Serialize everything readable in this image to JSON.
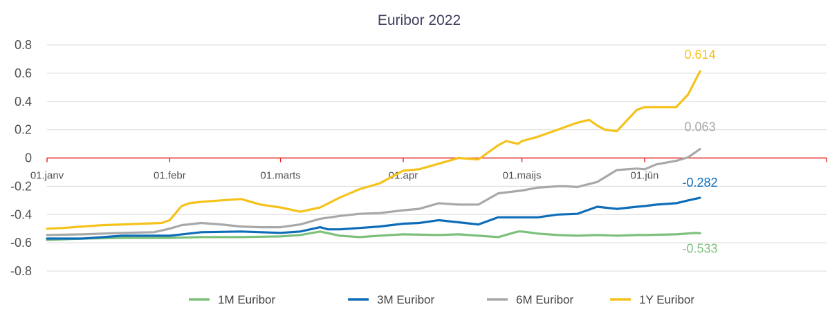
{
  "chart_data": {
    "type": "line",
    "title": "Euribor 2022",
    "ylim": [
      -0.8,
      0.8
    ],
    "yticks": [
      "0.8",
      "0.6",
      "0.4",
      "0.2",
      "0",
      "-0.2",
      "-0.4",
      "-0.6",
      "-0.8"
    ],
    "ytick_values": [
      0.8,
      0.6,
      0.4,
      0.2,
      0,
      -0.2,
      -0.4,
      -0.6,
      -0.8
    ],
    "xlim": [
      1,
      177
    ],
    "xticks": [
      {
        "label": "01.janv",
        "day": 1
      },
      {
        "label": "01.febr",
        "day": 32
      },
      {
        "label": "01.marts",
        "day": 60
      },
      {
        "label": "01.apr",
        "day": 91
      },
      {
        "label": "01.maijs",
        "day": 121
      },
      {
        "label": "01.jūn",
        "day": 152
      }
    ],
    "zero_line_color": "#e02020",
    "grid": true,
    "legend_position": "bottom",
    "series": [
      {
        "name": "1M Euribor",
        "color": "#7cc07c",
        "end_label": "-0.533",
        "x": [
          1,
          10,
          20,
          32,
          40,
          50,
          60,
          65,
          70,
          75,
          80,
          85,
          91,
          100,
          105,
          110,
          115,
          120,
          121,
          125,
          130,
          135,
          140,
          145,
          150,
          152,
          160,
          165,
          166
        ],
        "y": [
          -0.58,
          -0.57,
          -0.565,
          -0.565,
          -0.56,
          -0.56,
          -0.555,
          -0.545,
          -0.52,
          -0.55,
          -0.56,
          -0.55,
          -0.54,
          -0.545,
          -0.54,
          -0.55,
          -0.56,
          -0.52,
          -0.52,
          -0.535,
          -0.545,
          -0.55,
          -0.545,
          -0.55,
          -0.545,
          -0.545,
          -0.54,
          -0.53,
          -0.533
        ]
      },
      {
        "name": "3M Euribor",
        "color": "#0f6db8",
        "end_label": "-0.282",
        "x": [
          1,
          10,
          20,
          32,
          40,
          50,
          55,
          60,
          65,
          70,
          72,
          75,
          80,
          85,
          91,
          95,
          100,
          105,
          110,
          115,
          121,
          125,
          130,
          135,
          140,
          145,
          150,
          152,
          155,
          160,
          163,
          166
        ],
        "y": [
          -0.57,
          -0.57,
          -0.55,
          -0.55,
          -0.525,
          -0.52,
          -0.525,
          -0.53,
          -0.52,
          -0.49,
          -0.505,
          -0.505,
          -0.495,
          -0.485,
          -0.465,
          -0.46,
          -0.44,
          -0.455,
          -0.47,
          -0.42,
          -0.42,
          -0.42,
          -0.4,
          -0.395,
          -0.345,
          -0.36,
          -0.345,
          -0.34,
          -0.33,
          -0.32,
          -0.3,
          -0.282
        ]
      },
      {
        "name": "6M Euribor",
        "color": "#a8a8a8",
        "end_label": "0.063",
        "x": [
          1,
          10,
          20,
          28,
          32,
          35,
          40,
          45,
          50,
          55,
          60,
          65,
          70,
          75,
          80,
          85,
          91,
          95,
          100,
          105,
          110,
          115,
          121,
          125,
          130,
          132,
          135,
          140,
          145,
          150,
          152,
          155,
          160,
          163,
          166
        ],
        "y": [
          -0.545,
          -0.54,
          -0.53,
          -0.525,
          -0.5,
          -0.475,
          -0.46,
          -0.47,
          -0.485,
          -0.49,
          -0.49,
          -0.47,
          -0.43,
          -0.41,
          -0.395,
          -0.39,
          -0.37,
          -0.36,
          -0.32,
          -0.33,
          -0.33,
          -0.25,
          -0.23,
          -0.21,
          -0.2,
          -0.2,
          -0.205,
          -0.17,
          -0.085,
          -0.075,
          -0.08,
          -0.045,
          -0.02,
          0.005,
          0.063
        ]
      },
      {
        "name": "1Y Euribor",
        "color": "#f5c21b",
        "end_label": "0.614",
        "x": [
          1,
          5,
          10,
          15,
          20,
          25,
          30,
          32,
          35,
          37,
          40,
          45,
          50,
          55,
          60,
          65,
          70,
          75,
          80,
          85,
          91,
          95,
          100,
          105,
          110,
          115,
          117,
          120,
          121,
          125,
          130,
          135,
          138,
          140,
          142,
          145,
          150,
          152,
          155,
          160,
          163,
          166
        ],
        "y": [
          -0.5,
          -0.495,
          -0.485,
          -0.475,
          -0.47,
          -0.465,
          -0.46,
          -0.44,
          -0.34,
          -0.32,
          -0.31,
          -0.3,
          -0.29,
          -0.33,
          -0.35,
          -0.38,
          -0.35,
          -0.28,
          -0.22,
          -0.18,
          -0.09,
          -0.08,
          -0.04,
          0,
          -0.01,
          0.09,
          0.12,
          0.1,
          0.12,
          0.15,
          0.2,
          0.25,
          0.27,
          0.23,
          0.2,
          0.19,
          0.34,
          0.36,
          0.36,
          0.36,
          0.45,
          0.614
        ]
      }
    ]
  }
}
